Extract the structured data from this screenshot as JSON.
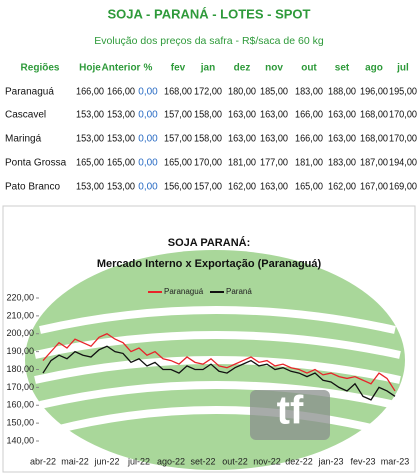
{
  "title": "SOJA - PARANÁ - LOTES - SPOT",
  "subtitle": "Evolução dos preços da safra - R$/saca de 60 kg",
  "table": {
    "header": [
      "Regiões",
      "Hoje",
      "Anterior",
      "%",
      "fev",
      "jan",
      "dez",
      "nov",
      "out",
      "set",
      "ago",
      "jul"
    ],
    "rows": [
      [
        "Paranaguá",
        "166,00",
        "166,00",
        "0,00",
        "168,00",
        "172,00",
        "180,00",
        "185,00",
        "183,00",
        "188,00",
        "196,00",
        "195,00"
      ],
      [
        "Cascavel",
        "153,00",
        "153,00",
        "0,00",
        "157,00",
        "158,00",
        "163,00",
        "163,00",
        "166,00",
        "163,00",
        "168,00",
        "170,00"
      ],
      [
        "Maringá",
        "153,00",
        "153,00",
        "0,00",
        "157,00",
        "158,00",
        "163,00",
        "163,00",
        "166,00",
        "163,00",
        "168,00",
        "170,00"
      ],
      [
        "Ponta Grossa",
        "165,00",
        "165,00",
        "0,00",
        "165,00",
        "170,00",
        "181,00",
        "177,00",
        "181,00",
        "183,00",
        "187,00",
        "194,00"
      ],
      [
        "Pato Branco",
        "153,00",
        "153,00",
        "0,00",
        "156,00",
        "157,00",
        "162,00",
        "163,00",
        "165,00",
        "162,00",
        "167,00",
        "169,00"
      ]
    ]
  },
  "chart_data": {
    "type": "line",
    "title": "SOJA PARANÁ:",
    "subtitle": "Mercado Interno x Exportação (Paranaguá)",
    "logo": "tf",
    "categories": [
      "abr-22",
      null,
      null,
      null,
      "mai-22",
      null,
      null,
      null,
      "jun-22",
      null,
      null,
      null,
      "jul-22",
      null,
      null,
      null,
      "ago-22",
      null,
      null,
      null,
      "set-22",
      null,
      null,
      null,
      "out-22",
      null,
      null,
      null,
      "nov-22",
      null,
      null,
      null,
      "dez-22",
      null,
      null,
      null,
      "jan-23",
      null,
      null,
      null,
      "fev-23",
      null,
      null,
      null,
      "mar-23"
    ],
    "series": [
      {
        "name": "Paranaguá",
        "color": "#e8242a",
        "values": [
          185,
          190,
          195,
          192,
          197,
          195,
          193,
          198,
          200,
          197,
          195,
          190,
          192,
          188,
          190,
          186,
          185,
          183,
          187,
          184,
          183,
          186,
          182,
          181,
          183,
          185,
          187,
          184,
          185,
          182,
          183,
          181,
          180,
          178,
          180,
          177,
          178,
          176,
          175,
          176,
          174,
          172,
          178,
          175,
          168
        ]
      },
      {
        "name": "Paraná",
        "color": "#111111",
        "values": [
          178,
          185,
          188,
          186,
          190,
          188,
          187,
          191,
          193,
          190,
          189,
          184,
          186,
          182,
          184,
          180,
          180,
          178,
          182,
          180,
          180,
          183,
          179,
          178,
          181,
          183,
          185,
          182,
          183,
          180,
          181,
          179,
          178,
          176,
          178,
          174,
          173,
          170,
          168,
          172,
          165,
          163,
          170,
          168,
          165
        ]
      }
    ],
    "ylim": [
      140,
      220
    ],
    "yticks": [
      {
        "value": 140,
        "label": "140,00"
      },
      {
        "value": 150,
        "label": "150,00"
      },
      {
        "value": 160,
        "label": "160,00"
      },
      {
        "value": 170,
        "label": "170,00"
      },
      {
        "value": 180,
        "label": "180,00"
      },
      {
        "value": 190,
        "label": "190,00"
      },
      {
        "value": 200,
        "label": "200,00"
      },
      {
        "value": 210,
        "label": "210,00"
      },
      {
        "value": 220,
        "label": "220,00"
      }
    ],
    "legend": "top"
  }
}
